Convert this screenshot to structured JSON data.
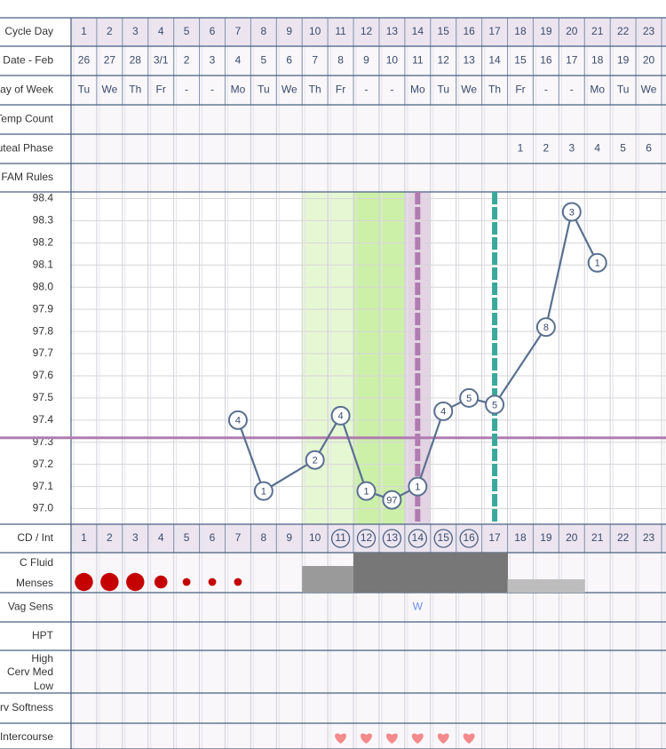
{
  "rows": {
    "cycle_day": "Cycle Day",
    "date": "Date - Feb",
    "weekday": "Day of Week",
    "temp_count": "Temp Count",
    "luteal": "Luteal Phase",
    "fam_rules": "FAM Rules",
    "cd_int": "CD / Int",
    "c_fluid": "C Fluid",
    "menses": "Menses",
    "vag_sens": "Vag Sens",
    "hpt": "HPT",
    "cervix_high": "High",
    "cervix_med": "Cerv Med",
    "cervix_low": "Low",
    "cerv_softness": "Cerv Softness",
    "intercourse": "Intercourse"
  },
  "cycle_days": [
    1,
    2,
    3,
    4,
    5,
    6,
    7,
    8,
    9,
    10,
    11,
    12,
    13,
    14,
    15,
    16,
    17,
    18,
    19,
    20,
    21,
    22,
    23
  ],
  "dates": [
    "26",
    "27",
    "28",
    "3/1",
    "2",
    "3",
    "4",
    "5",
    "6",
    "7",
    "8",
    "9",
    "10",
    "11",
    "12",
    "13",
    "14",
    "15",
    "16",
    "17",
    "18",
    "19",
    "20"
  ],
  "weekdays": [
    "Tu",
    "We",
    "Th",
    "Fr",
    "-",
    "-",
    "Mo",
    "Tu",
    "We",
    "Th",
    "Fr",
    "-",
    "-",
    "Mo",
    "Tu",
    "We",
    "Th",
    "Fr",
    "-",
    "-",
    "Mo",
    "Tu",
    "We"
  ],
  "luteal_phase": {
    "days": [
      18,
      19,
      20,
      21,
      22,
      23
    ],
    "values": [
      1,
      2,
      3,
      4,
      5,
      6
    ]
  },
  "chart_data": {
    "type": "line",
    "x": [
      7,
      8,
      10,
      11,
      12,
      13,
      14,
      15,
      16,
      17,
      19,
      20,
      21
    ],
    "values": [
      97.4,
      97.08,
      97.22,
      97.42,
      97.08,
      97.04,
      97.1,
      97.44,
      97.5,
      97.47,
      97.82,
      98.34,
      98.11
    ],
    "marker_texts": [
      "4",
      "1",
      "2",
      "4",
      "1",
      "97",
      "1",
      "4",
      "5",
      "5",
      "8",
      "3",
      "1"
    ],
    "color": "#5a7090",
    "xlim": [
      0.5,
      23.5
    ],
    "ylim": [
      96.93,
      98.43
    ],
    "yticks": [
      {
        "value": 97,
        "label": "97.0"
      },
      97.1,
      97.2,
      97.3,
      97.4,
      97.5,
      97.6,
      97.7,
      97.8,
      97.9,
      {
        "value": 98,
        "label": "98.0"
      },
      98.1,
      98.2,
      98.3,
      98.4
    ],
    "grid": true,
    "coverline": 97.32,
    "coverline_color": "#b07cb0",
    "peak_day": 14,
    "peak_color": "#b07cb0",
    "shift_day": 17,
    "shift_color": "#3aa89a",
    "shading": [
      {
        "from": 10,
        "to": 11,
        "color": "#e6f7d4"
      },
      {
        "from": 12,
        "to": 13,
        "color": "#ccf0a8"
      },
      {
        "from": 14,
        "to": 14,
        "color": "#e3d3e3"
      }
    ]
  },
  "cervical_fluid": {
    "days": [
      10,
      11,
      12,
      13,
      14,
      15,
      16,
      17,
      18,
      19,
      20
    ],
    "levels": [
      2,
      2,
      3,
      3,
      3,
      3,
      3,
      3,
      1,
      1,
      1
    ],
    "max": 3,
    "colors": [
      "#bdbdbd",
      "#9a9a9a",
      "#777777"
    ]
  },
  "menses": {
    "days": [
      1,
      2,
      3,
      4,
      5,
      6,
      7
    ],
    "levels": [
      3,
      3,
      3,
      2,
      1,
      1,
      1
    ],
    "color": "#c40000"
  },
  "vag_sens": {
    "days": [
      14
    ],
    "values": [
      "W"
    ]
  },
  "intercourse_days": [
    11,
    12,
    13,
    14,
    15,
    16
  ]
}
